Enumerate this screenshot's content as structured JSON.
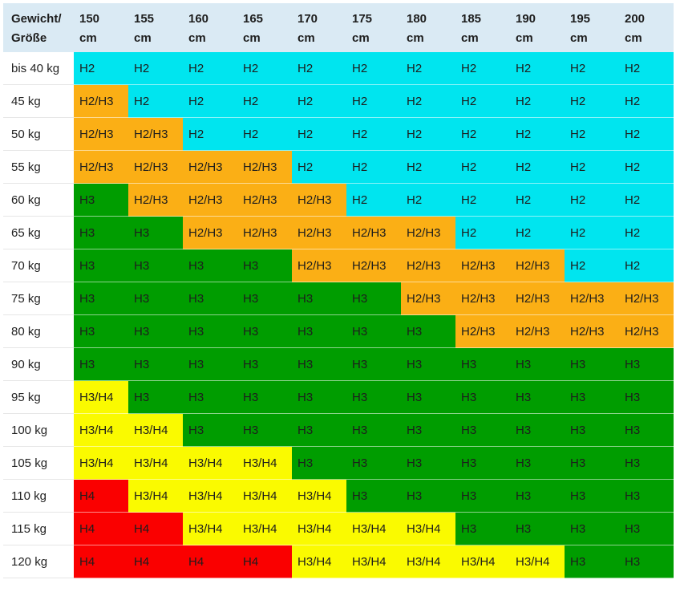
{
  "header": {
    "corner": "Gewicht/ Größe",
    "heights": [
      "150 cm",
      "155 cm",
      "160 cm",
      "165 cm",
      "170 cm",
      "175 cm",
      "180 cm",
      "185 cm",
      "190 cm",
      "195 cm",
      "200 cm"
    ]
  },
  "colors": {
    "H2": "#00e5ef",
    "H2/H3": "#fbaf15",
    "H3": "#009d00",
    "H3/H4": "#fafa00",
    "H4": "#fa0000"
  },
  "text_colors": {
    "default": "#1d1d1d",
    "on_dark": "#1a1a1a"
  },
  "rows": [
    {
      "label": "bis 40 kg",
      "cells": [
        "H2",
        "H2",
        "H2",
        "H2",
        "H2",
        "H2",
        "H2",
        "H2",
        "H2",
        "H2",
        "H2"
      ]
    },
    {
      "label": "45 kg",
      "cells": [
        "H2/H3",
        "H2",
        "H2",
        "H2",
        "H2",
        "H2",
        "H2",
        "H2",
        "H2",
        "H2",
        "H2"
      ]
    },
    {
      "label": "50 kg",
      "cells": [
        "H2/H3",
        "H2/H3",
        "H2",
        "H2",
        "H2",
        "H2",
        "H2",
        "H2",
        "H2",
        "H2",
        "H2"
      ]
    },
    {
      "label": "55 kg",
      "cells": [
        "H2/H3",
        "H2/H3",
        "H2/H3",
        "H2/H3",
        "H2",
        "H2",
        "H2",
        "H2",
        "H2",
        "H2",
        "H2"
      ]
    },
    {
      "label": "60 kg",
      "cells": [
        "H3",
        "H2/H3",
        "H2/H3",
        "H2/H3",
        "H2/H3",
        "H2",
        "H2",
        "H2",
        "H2",
        "H2",
        "H2"
      ]
    },
    {
      "label": "65 kg",
      "cells": [
        "H3",
        "H3",
        "H2/H3",
        "H2/H3",
        "H2/H3",
        "H2/H3",
        "H2/H3",
        "H2",
        "H2",
        "H2",
        "H2"
      ]
    },
    {
      "label": "70 kg",
      "cells": [
        "H3",
        "H3",
        "H3",
        "H3",
        "H2/H3",
        "H2/H3",
        "H2/H3",
        "H2/H3",
        "H2/H3",
        "H2",
        "H2"
      ]
    },
    {
      "label": "75 kg",
      "cells": [
        "H3",
        "H3",
        "H3",
        "H3",
        "H3",
        "H3",
        "H2/H3",
        "H2/H3",
        "H2/H3",
        "H2/H3",
        "H2/H3"
      ]
    },
    {
      "label": "80 kg",
      "cells": [
        "H3",
        "H3",
        "H3",
        "H3",
        "H3",
        "H3",
        "H3",
        "H2/H3",
        "H2/H3",
        "H2/H3",
        "H2/H3"
      ]
    },
    {
      "label": "90 kg",
      "cells": [
        "H3",
        "H3",
        "H3",
        "H3",
        "H3",
        "H3",
        "H3",
        "H3",
        "H3",
        "H3",
        "H3"
      ]
    },
    {
      "label": "95 kg",
      "cells": [
        "H3/H4",
        "H3",
        "H3",
        "H3",
        "H3",
        "H3",
        "H3",
        "H3",
        "H3",
        "H3",
        "H3"
      ]
    },
    {
      "label": "100 kg",
      "cells": [
        "H3/H4",
        "H3/H4",
        "H3",
        "H3",
        "H3",
        "H3",
        "H3",
        "H3",
        "H3",
        "H3",
        "H3"
      ]
    },
    {
      "label": "105 kg",
      "cells": [
        "H3/H4",
        "H3/H4",
        "H3/H4",
        "H3/H4",
        "H3",
        "H3",
        "H3",
        "H3",
        "H3",
        "H3",
        "H3"
      ]
    },
    {
      "label": "110 kg",
      "cells": [
        "H4",
        "H3/H4",
        "H3/H4",
        "H3/H4",
        "H3/H4",
        "H3",
        "H3",
        "H3",
        "H3",
        "H3",
        "H3"
      ]
    },
    {
      "label": "115 kg",
      "cells": [
        "H4",
        "H4",
        "H3/H4",
        "H3/H4",
        "H3/H4",
        "H3/H4",
        "H3/H4",
        "H3",
        "H3",
        "H3",
        "H3"
      ]
    },
    {
      "label": "120 kg",
      "cells": [
        "H4",
        "H4",
        "H4",
        "H4",
        "H3/H4",
        "H3/H4",
        "H3/H4",
        "H3/H4",
        "H3/H4",
        "H3",
        "H3"
      ]
    }
  ]
}
